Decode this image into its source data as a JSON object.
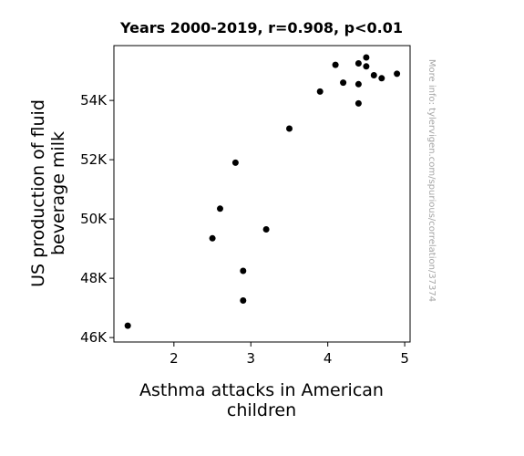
{
  "chart_data": {
    "type": "scatter",
    "title": "Years 2000-2019, r=0.908, p<0.01",
    "xlabel": [
      "Asthma attacks in American",
      "children"
    ],
    "ylabel": [
      "US production of fluid",
      "beverage milk"
    ],
    "watermark": "More info: tylervigen.com/spurious/correlation/37374",
    "xlim": [
      1.22,
      5.07
    ],
    "ylim": [
      45850,
      55850
    ],
    "xticks": [
      {
        "value": 2,
        "label": "2"
      },
      {
        "value": 3,
        "label": "3"
      },
      {
        "value": 4,
        "label": "4"
      },
      {
        "value": 5,
        "label": "5"
      }
    ],
    "yticks": [
      {
        "value": 46000,
        "label": "46K"
      },
      {
        "value": 48000,
        "label": "48K"
      },
      {
        "value": 50000,
        "label": "50K"
      },
      {
        "value": 52000,
        "label": "52K"
      },
      {
        "value": 54000,
        "label": "54K"
      }
    ],
    "grid": false,
    "marker_color": "#000000",
    "points": [
      {
        "x": 1.4,
        "y": 46400
      },
      {
        "x": 2.5,
        "y": 49350
      },
      {
        "x": 2.6,
        "y": 50350
      },
      {
        "x": 2.8,
        "y": 51900
      },
      {
        "x": 2.9,
        "y": 48250
      },
      {
        "x": 2.9,
        "y": 47250
      },
      {
        "x": 3.2,
        "y": 49650
      },
      {
        "x": 3.5,
        "y": 53050
      },
      {
        "x": 3.9,
        "y": 54300
      },
      {
        "x": 4.1,
        "y": 55200
      },
      {
        "x": 4.2,
        "y": 54600
      },
      {
        "x": 4.4,
        "y": 55250
      },
      {
        "x": 4.4,
        "y": 54550
      },
      {
        "x": 4.4,
        "y": 53900
      },
      {
        "x": 4.5,
        "y": 55450
      },
      {
        "x": 4.5,
        "y": 55150
      },
      {
        "x": 4.6,
        "y": 54850
      },
      {
        "x": 4.7,
        "y": 54750
      },
      {
        "x": 4.9,
        "y": 54900
      }
    ]
  }
}
